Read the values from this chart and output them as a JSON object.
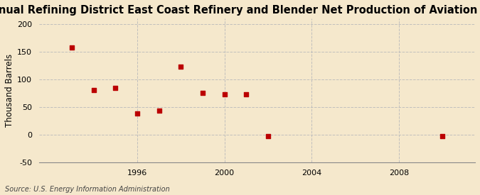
{
  "title": "Annual Refining District East Coast Refinery and Blender Net Production of Aviation Gasoline",
  "ylabel": "Thousand Barrels",
  "source": "Source: U.S. Energy Information Administration",
  "x_values": [
    1993,
    1994,
    1995,
    1996,
    1997,
    1998,
    1999,
    2000,
    2001,
    2002,
    2010
  ],
  "y_values": [
    157,
    80,
    85,
    38,
    43,
    123,
    75,
    73,
    73,
    -2,
    -3
  ],
  "marker_color": "#bb0000",
  "marker_size": 18,
  "background_color": "#f5e8cc",
  "axes_background": "#f5e8cc",
  "ylim": [
    -50,
    210
  ],
  "yticks": [
    -50,
    0,
    50,
    100,
    150,
    200
  ],
  "xlim": [
    1991.5,
    2011.5
  ],
  "xticks": [
    1996,
    2000,
    2004,
    2008
  ],
  "grid_color": "#bbbbbb",
  "title_fontsize": 10.5,
  "label_fontsize": 8.5,
  "tick_fontsize": 8,
  "source_fontsize": 7
}
